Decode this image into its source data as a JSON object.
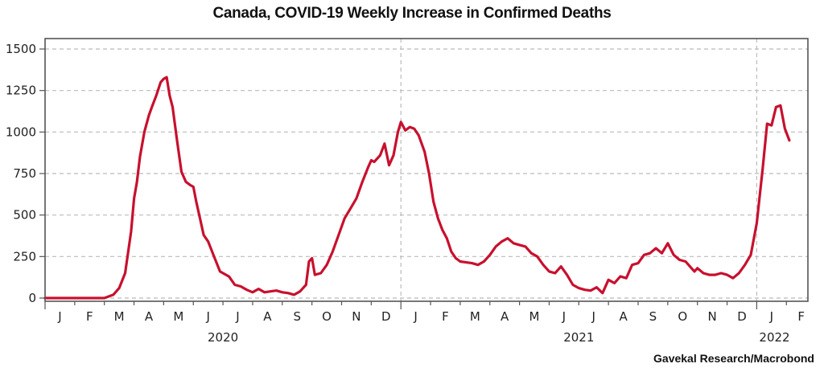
{
  "chart_data": {
    "type": "line",
    "title": "Canada, COVID-19 Weekly Increase in Confirmed Deaths",
    "source": "Gavekal Research/Macrobond",
    "xlabel": "",
    "ylabel": "",
    "ylim": [
      0,
      1500
    ],
    "yticks": [
      0,
      250,
      500,
      750,
      1000,
      1250,
      1500
    ],
    "ytick_labels": [
      "0",
      "250",
      "500",
      "750",
      "1000",
      "1250",
      "1500"
    ],
    "xlim_months": [
      0,
      25.3
    ],
    "month_labels": [
      "J",
      "F",
      "M",
      "A",
      "M",
      "J",
      "J",
      "A",
      "S",
      "O",
      "N",
      "D",
      "J",
      "F",
      "M",
      "A",
      "M",
      "J",
      "J",
      "A",
      "S",
      "O",
      "N",
      "D",
      "J",
      "F"
    ],
    "year_labels": [
      {
        "label": "2020",
        "center_month": 6
      },
      {
        "label": "2021",
        "center_month": 18
      },
      {
        "label": "2022",
        "center_month": 24.6
      }
    ],
    "year_gridlines_months": [
      12,
      24
    ],
    "grid": true,
    "legend": "none",
    "series": [
      {
        "name": "Weekly Increase in Confirmed Deaths",
        "color": "#c8102e",
        "x_months": [
          0,
          0.5,
          1,
          1.5,
          2.0,
          2.3,
          2.5,
          2.7,
          2.9,
          3.0,
          3.1,
          3.2,
          3.35,
          3.5,
          3.6,
          3.75,
          3.9,
          4.0,
          4.1,
          4.2,
          4.3,
          4.45,
          4.6,
          4.75,
          4.9,
          5.0,
          5.1,
          5.2,
          5.35,
          5.5,
          5.7,
          5.9,
          6.0,
          6.2,
          6.4,
          6.6,
          6.8,
          7.0,
          7.2,
          7.4,
          7.6,
          7.8,
          8.0,
          8.2,
          8.4,
          8.6,
          8.7,
          8.8,
          8.9,
          9.0,
          9.1,
          9.3,
          9.5,
          9.7,
          9.9,
          10.1,
          10.3,
          10.5,
          10.7,
          10.9,
          11.0,
          11.1,
          11.2,
          11.3,
          11.45,
          11.6,
          11.75,
          11.9,
          12.0,
          12.15,
          12.3,
          12.45,
          12.6,
          12.8,
          12.95,
          13.1,
          13.25,
          13.4,
          13.55,
          13.7,
          13.85,
          14.0,
          14.2,
          14.4,
          14.6,
          14.8,
          15.0,
          15.2,
          15.4,
          15.6,
          15.8,
          16.0,
          16.2,
          16.4,
          16.6,
          16.8,
          17.0,
          17.2,
          17.4,
          17.6,
          17.8,
          18.0,
          18.2,
          18.4,
          18.6,
          18.8,
          19.0,
          19.2,
          19.4,
          19.6,
          19.8,
          20.0,
          20.2,
          20.4,
          20.6,
          20.8,
          21.0,
          21.2,
          21.4,
          21.6,
          21.8,
          21.9,
          22.0,
          22.2,
          22.4,
          22.6,
          22.8,
          23.0,
          23.2,
          23.4,
          23.6,
          23.8,
          24.0,
          24.2,
          24.35,
          24.5,
          24.65,
          24.8,
          24.95,
          25.1,
          25.2,
          25.3
        ],
        "values": [
          0,
          0,
          0,
          0,
          0,
          20,
          60,
          150,
          400,
          600,
          700,
          850,
          1000,
          1100,
          1150,
          1220,
          1300,
          1320,
          1330,
          1220,
          1150,
          950,
          760,
          700,
          680,
          670,
          580,
          500,
          380,
          340,
          250,
          160,
          150,
          130,
          80,
          70,
          50,
          35,
          55,
          35,
          40,
          45,
          35,
          30,
          20,
          40,
          60,
          80,
          220,
          240,
          140,
          150,
          200,
          280,
          380,
          480,
          540,
          600,
          700,
          790,
          830,
          820,
          840,
          860,
          930,
          800,
          860,
          1000,
          1060,
          1010,
          1030,
          1020,
          980,
          880,
          750,
          580,
          480,
          410,
          360,
          280,
          240,
          220,
          215,
          210,
          200,
          220,
          260,
          310,
          340,
          360,
          330,
          320,
          310,
          270,
          250,
          200,
          160,
          150,
          190,
          140,
          80,
          60,
          50,
          45,
          65,
          30,
          110,
          90,
          130,
          120,
          200,
          210,
          260,
          270,
          300,
          270,
          330,
          260,
          230,
          220,
          180,
          160,
          180,
          150,
          140,
          140,
          150,
          140,
          120,
          150,
          200,
          260,
          450,
          780,
          1050,
          1040,
          1150,
          1160,
          1020,
          950
        ]
      }
    ]
  }
}
